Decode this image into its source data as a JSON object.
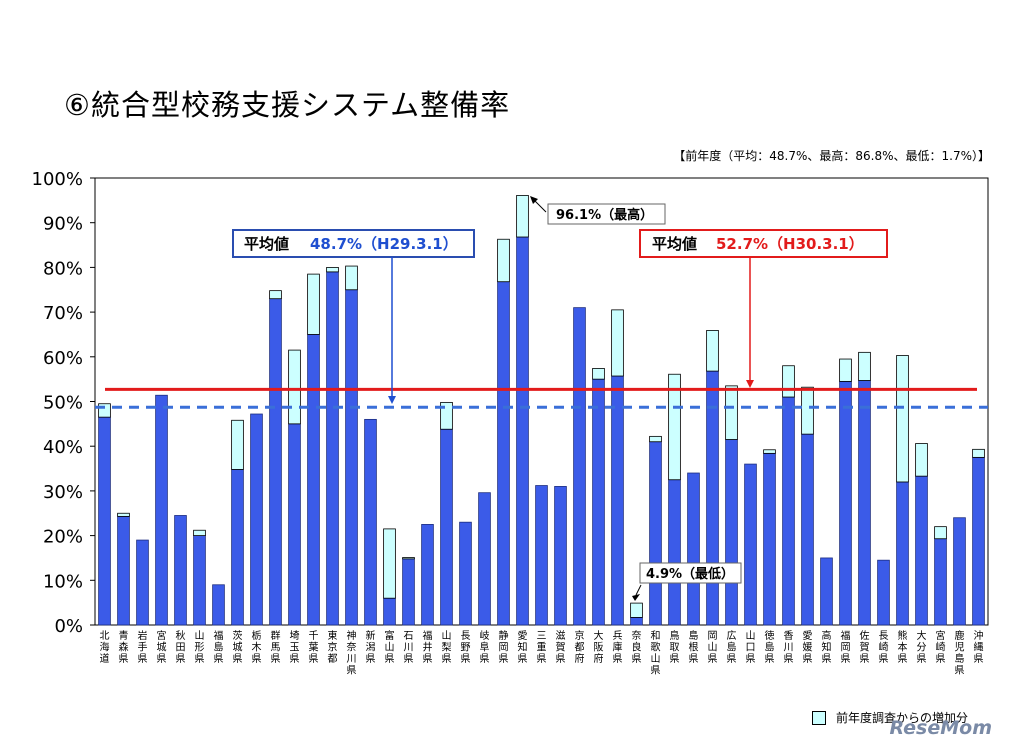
{
  "title": "⑥統合型校務支援システム整備率",
  "note": "【前年度（平均：48.7%、最高：86.8%、最低：1.7%）】",
  "legend_label": "前年度調査からの増加分",
  "watermark": "ReseMom",
  "callouts": {
    "prev_avg_label": "平均値",
    "prev_avg_value": "48.7%（H29.3.1）",
    "cur_avg_label": "平均値",
    "cur_avg_value": "52.7%（H30.3.1）",
    "max_label": "96.1%（最高）",
    "min_label": "4.9%（最低）"
  },
  "colors": {
    "bar": "#3b5be8",
    "increase": "#ccffff",
    "current_avg": "#e21b1b",
    "previous_avg": "#3a6fd8",
    "prev_box_border": "#2a4db0",
    "prev_box_text": "#1f4fd0"
  },
  "chart_data": {
    "type": "bar",
    "ylim": [
      0,
      100
    ],
    "yticks": [
      "0%",
      "10%",
      "20%",
      "30%",
      "40%",
      "50%",
      "60%",
      "70%",
      "80%",
      "90%",
      "100%"
    ],
    "current_average": 52.7,
    "previous_average": 48.7,
    "categories": [
      "北海道",
      "青森県",
      "岩手県",
      "宮城県",
      "秋田県",
      "山形県",
      "福島県",
      "茨城県",
      "栃木県",
      "群馬県",
      "埼玉県",
      "千葉県",
      "東京都",
      "神奈川県",
      "新潟県",
      "富山県",
      "石川県",
      "福井県",
      "山梨県",
      "長野県",
      "岐阜県",
      "静岡県",
      "愛知県",
      "三重県",
      "滋賀県",
      "京都府",
      "大阪府",
      "兵庫県",
      "奈良県",
      "和歌山県",
      "鳥取県",
      "島根県",
      "岡山県",
      "広島県",
      "山口県",
      "徳島県",
      "香川県",
      "愛媛県",
      "高知県",
      "福岡県",
      "佐賀県",
      "長崎県",
      "熊本県",
      "大分県",
      "宮崎県",
      "鹿児島県",
      "沖縄県"
    ],
    "series": [
      {
        "name": "",
        "values": [
          46.5,
          24.3,
          19.0,
          51.4,
          24.5,
          20.0,
          9.0,
          34.8,
          47.2,
          73.0,
          45.0,
          65.0,
          79.0,
          75.0,
          46.0,
          6.0,
          14.8,
          22.5,
          43.8,
          23.0,
          29.6,
          76.8,
          86.8,
          31.2,
          31.0,
          71.0,
          55.0,
          55.7,
          1.7,
          41.0,
          32.5,
          34.0,
          56.8,
          41.5,
          36.0,
          38.4,
          51.0,
          42.7,
          15.0,
          54.5,
          54.7,
          14.5,
          32.0,
          33.3,
          19.3,
          24.0,
          37.5
        ]
      },
      {
        "name": "前年度調査からの増加分",
        "values": [
          3.0,
          0.7,
          0,
          0,
          0,
          1.2,
          0,
          11.0,
          0,
          1.8,
          16.5,
          13.5,
          1.0,
          5.3,
          0,
          15.5,
          0.3,
          0,
          6.0,
          0,
          0,
          9.5,
          9.3,
          0,
          0,
          0,
          2.4,
          14.8,
          3.2,
          1.2,
          23.6,
          0,
          9.1,
          12.0,
          0,
          0.8,
          7.0,
          10.5,
          0,
          5.0,
          6.3,
          0,
          28.3,
          7.3,
          2.7,
          0,
          1.8
        ]
      }
    ]
  }
}
